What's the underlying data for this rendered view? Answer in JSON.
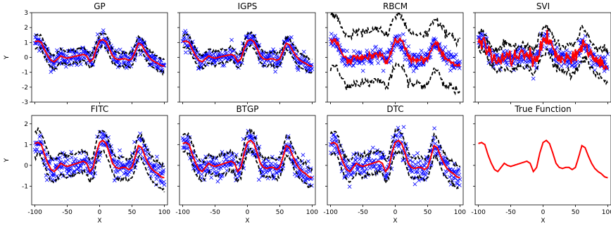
{
  "colors": {
    "data_points": "#0000ff",
    "mean": "#ff0000",
    "confidence": "#000000"
  },
  "chart_data": [
    {
      "type": "scatter",
      "title": "GP",
      "xlabel": "",
      "ylabel": "Y",
      "xlim": [
        -105,
        105
      ],
      "ylim": [
        -3,
        3
      ],
      "yticks": [
        -3,
        -2,
        -1,
        0,
        1,
        2,
        3
      ],
      "xticks": [
        -100,
        -50,
        0,
        50,
        100
      ],
      "show_xticklabels": false,
      "show_yticklabels": true,
      "ci_half_width": [
        0.45,
        0.45,
        0.45,
        0.45,
        0.45,
        0.45,
        0.45,
        0.45,
        0.45
      ],
      "mean_noise": 0.0,
      "series": [
        {
          "kind": "points",
          "style": "x",
          "color": "#0000ff",
          "n": 300,
          "noise": 0.3
        },
        {
          "kind": "mean",
          "style": "line",
          "color": "#ff0000"
        },
        {
          "kind": "ci",
          "style": "dashed",
          "color": "#000000"
        }
      ]
    },
    {
      "type": "scatter",
      "title": "IGPS",
      "xlabel": "",
      "ylabel": "",
      "xlim": [
        -105,
        105
      ],
      "ylim": [
        -3,
        3
      ],
      "yticks": [
        -3,
        -2,
        -1,
        0,
        1,
        2,
        3
      ],
      "xticks": [
        -100,
        -50,
        0,
        50,
        100
      ],
      "show_xticklabels": false,
      "show_yticklabels": false,
      "ci_half_width": [
        0.45,
        0.45,
        0.45,
        0.45,
        0.45,
        0.45,
        0.45,
        0.45,
        0.45
      ],
      "mean_noise": 0.0,
      "series": [
        {
          "kind": "points",
          "style": "x",
          "color": "#0000ff",
          "n": 300,
          "noise": 0.3
        },
        {
          "kind": "mean",
          "style": "line",
          "color": "#ff0000"
        },
        {
          "kind": "ci",
          "style": "dashed",
          "color": "#000000"
        }
      ]
    },
    {
      "type": "scatter",
      "title": "RBCM",
      "xlabel": "",
      "ylabel": "",
      "xlim": [
        -105,
        105
      ],
      "ylim": [
        -3,
        3
      ],
      "yticks": [
        -3,
        -2,
        -1,
        0,
        1,
        2,
        3
      ],
      "xticks": [
        -100,
        -50,
        0,
        50,
        100
      ],
      "show_xticklabels": false,
      "show_yticklabels": false,
      "ci_half_width": [
        1.7,
        1.7,
        1.7,
        1.7,
        1.7,
        1.7,
        1.7,
        1.7,
        1.7
      ],
      "mean_noise": 0.12,
      "series": [
        {
          "kind": "points",
          "style": "x",
          "color": "#0000ff",
          "n": 300,
          "noise": 0.3
        },
        {
          "kind": "mean",
          "style": "line",
          "color": "#ff0000"
        },
        {
          "kind": "ci",
          "style": "dashed",
          "color": "#000000"
        }
      ]
    },
    {
      "type": "scatter",
      "title": "SVI",
      "xlabel": "",
      "ylabel": "",
      "xlim": [
        -105,
        105
      ],
      "ylim": [
        -3,
        3
      ],
      "yticks": [
        -3,
        -2,
        -1,
        0,
        1,
        2,
        3
      ],
      "xticks": [
        -100,
        -50,
        0,
        50,
        100
      ],
      "show_xticklabels": false,
      "show_yticklabels": false,
      "ci_half_width": [
        0.6,
        0.7,
        0.8,
        0.7,
        0.9,
        0.8,
        1.0,
        0.9,
        1.0
      ],
      "mean_noise": 0.25,
      "series": [
        {
          "kind": "points",
          "style": "x",
          "color": "#0000ff",
          "n": 300,
          "noise": 0.3
        },
        {
          "kind": "mean",
          "style": "line",
          "color": "#ff0000"
        },
        {
          "kind": "ci",
          "style": "dashed",
          "color": "#000000"
        }
      ]
    },
    {
      "type": "scatter",
      "title": "FITC",
      "xlabel": "X",
      "ylabel": "Y",
      "xlim": [
        -105,
        105
      ],
      "ylim": [
        -1.9,
        2.4
      ],
      "yticks": [
        -1,
        0,
        1,
        2
      ],
      "xticks": [
        -100,
        -50,
        0,
        50,
        100
      ],
      "show_xticklabels": true,
      "show_yticklabels": true,
      "ci_half_width": [
        0.6,
        0.55,
        0.5,
        0.5,
        0.5,
        0.5,
        0.5,
        0.55,
        0.6
      ],
      "mean_noise": 0.0,
      "series": [
        {
          "kind": "points",
          "style": "x",
          "color": "#0000ff",
          "n": 300,
          "noise": 0.3
        },
        {
          "kind": "mean",
          "style": "line",
          "color": "#ff0000"
        },
        {
          "kind": "ci",
          "style": "dashed",
          "color": "#000000"
        }
      ]
    },
    {
      "type": "scatter",
      "title": "BTGP",
      "xlabel": "X",
      "ylabel": "",
      "xlim": [
        -105,
        105
      ],
      "ylim": [
        -1.9,
        2.4
      ],
      "yticks": [
        -1,
        0,
        1,
        2
      ],
      "xticks": [
        -100,
        -50,
        0,
        50,
        100
      ],
      "show_xticklabels": true,
      "show_yticklabels": false,
      "ci_half_width": [
        0.45,
        0.45,
        0.45,
        0.45,
        0.45,
        0.45,
        0.45,
        0.45,
        0.45
      ],
      "mean_noise": 0.0,
      "series": [
        {
          "kind": "points",
          "style": "x",
          "color": "#0000ff",
          "n": 300,
          "noise": 0.3
        },
        {
          "kind": "mean",
          "style": "line",
          "color": "#ff0000"
        },
        {
          "kind": "ci",
          "style": "dashed",
          "color": "#000000"
        }
      ]
    },
    {
      "type": "scatter",
      "title": "DTC",
      "xlabel": "X",
      "ylabel": "",
      "xlim": [
        -105,
        105
      ],
      "ylim": [
        -1.9,
        2.4
      ],
      "yticks": [
        -1,
        0,
        1,
        2
      ],
      "xticks": [
        -100,
        -50,
        0,
        50,
        100
      ],
      "show_xticklabels": true,
      "show_yticklabels": false,
      "ci_half_width": [
        0.55,
        0.5,
        0.5,
        0.5,
        0.5,
        0.5,
        0.5,
        0.5,
        0.55
      ],
      "mean_noise": 0.0,
      "series": [
        {
          "kind": "points",
          "style": "x",
          "color": "#0000ff",
          "n": 300,
          "noise": 0.3
        },
        {
          "kind": "mean",
          "style": "line",
          "color": "#ff0000"
        },
        {
          "kind": "ci",
          "style": "dashed",
          "color": "#000000"
        }
      ]
    },
    {
      "type": "line",
      "title": "True Function",
      "xlabel": "X",
      "ylabel": "",
      "xlim": [
        -105,
        105
      ],
      "ylim": [
        -1.9,
        2.4
      ],
      "yticks": [
        -1,
        0,
        1,
        2
      ],
      "xticks": [
        -100,
        -50,
        0,
        50,
        100
      ],
      "show_xticklabels": true,
      "show_yticklabels": false,
      "mean_noise": 0.0,
      "series": [
        {
          "kind": "mean",
          "style": "line",
          "color": "#ff0000"
        }
      ]
    }
  ],
  "true_function": {
    "x": [
      -100,
      -95,
      -90,
      -85,
      -80,
      -75,
      -70,
      -65,
      -60,
      -55,
      -50,
      -45,
      -40,
      -35,
      -30,
      -25,
      -20,
      -15,
      -10,
      -5,
      0,
      5,
      10,
      15,
      20,
      25,
      30,
      35,
      40,
      45,
      50,
      55,
      60,
      65,
      70,
      75,
      80,
      85,
      90,
      95,
      100
    ],
    "y": [
      1.05,
      1.1,
      1.0,
      0.5,
      0.1,
      -0.2,
      -0.3,
      -0.1,
      0.1,
      0.0,
      -0.05,
      0.0,
      0.05,
      0.1,
      0.15,
      0.2,
      0.1,
      -0.3,
      -0.1,
      0.6,
      1.1,
      1.2,
      1.05,
      0.6,
      0.1,
      -0.1,
      -0.15,
      -0.1,
      -0.1,
      -0.2,
      -0.1,
      0.4,
      0.95,
      0.85,
      0.45,
      0.1,
      -0.15,
      -0.3,
      -0.4,
      -0.55,
      -0.6
    ]
  }
}
